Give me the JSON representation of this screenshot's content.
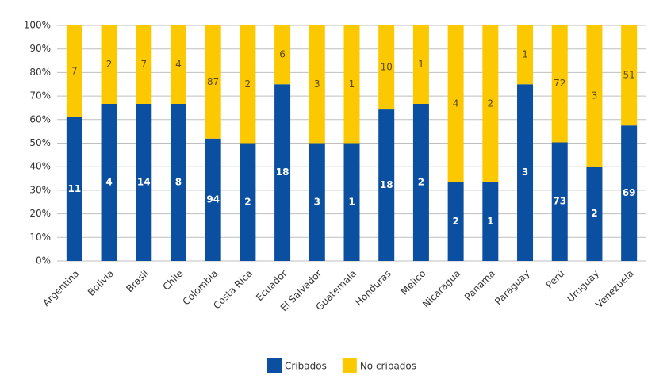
{
  "chart_data": {
    "type": "bar",
    "stacking": "percent",
    "categories": [
      "Argentina",
      "Bolivia",
      "Brasil",
      "Chile",
      "Colombia",
      "Costa Rica",
      "Ecuador",
      "El Salvador",
      "Guatemala",
      "Honduras",
      "Méjico",
      "Nicaragua",
      "Panamá",
      "Paraguay",
      "Perú",
      "Uruguay",
      "Venezuela"
    ],
    "series": [
      {
        "name": "Cribados",
        "color": "#0b4fa0",
        "label_color": "#ffffff",
        "values": [
          11,
          4,
          14,
          8,
          94,
          2,
          18,
          3,
          1,
          18,
          2,
          2,
          1,
          3,
          73,
          2,
          69
        ]
      },
      {
        "name": "No cribados",
        "color": "#fcc800",
        "label_color": "#5a4a1a",
        "values": [
          7,
          2,
          7,
          4,
          87,
          2,
          6,
          3,
          1,
          10,
          1,
          4,
          2,
          1,
          72,
          3,
          51
        ]
      }
    ],
    "ylim": [
      0,
      100
    ],
    "yticks": [
      {
        "value": 0,
        "label": "0%"
      },
      {
        "value": 10,
        "label": "10%"
      },
      {
        "value": 20,
        "label": "20%"
      },
      {
        "value": 30,
        "label": "30%"
      },
      {
        "value": 40,
        "label": "40%"
      },
      {
        "value": 50,
        "label": "50%"
      },
      {
        "value": 60,
        "label": "60%"
      },
      {
        "value": 70,
        "label": "70%"
      },
      {
        "value": 80,
        "label": "80%"
      },
      {
        "value": 90,
        "label": "90%"
      },
      {
        "value": 100,
        "label": "100%"
      }
    ],
    "grid": true,
    "legend": "bottom"
  }
}
